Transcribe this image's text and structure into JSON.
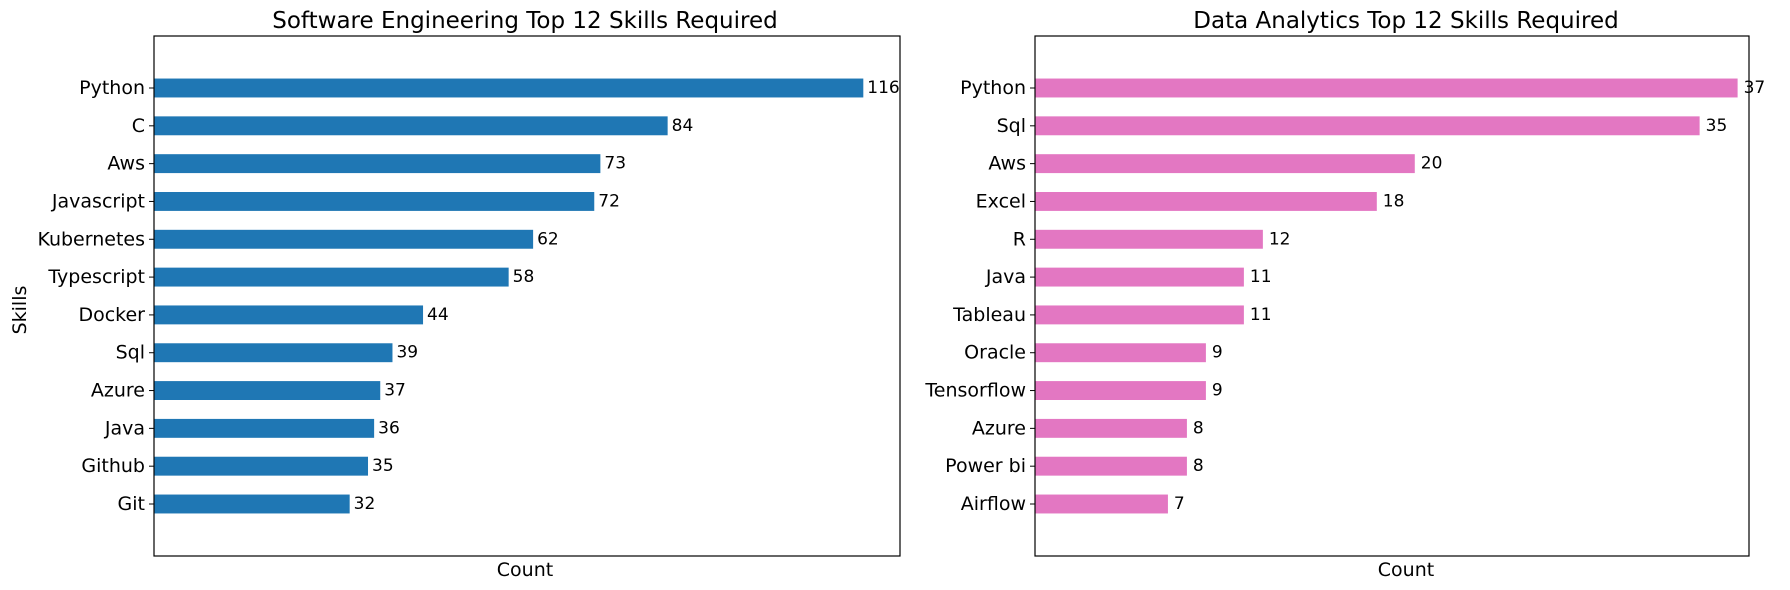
{
  "chart_data": [
    {
      "type": "bar",
      "orientation": "horizontal",
      "title": "Software Engineering Top 12 Skills Required",
      "xlabel": "Count",
      "ylabel": "Skills",
      "xlim": [
        0,
        122
      ],
      "categories": [
        "Python",
        "C",
        "Aws",
        "Javascript",
        "Kubernetes",
        "Typescript",
        "Docker",
        "Sql",
        "Azure",
        "Java",
        "Github",
        "Git"
      ],
      "values": [
        116,
        84,
        73,
        72,
        62,
        58,
        44,
        39,
        37,
        36,
        35,
        32
      ],
      "color": "#1f77b4",
      "grid": false,
      "data_labels": true
    },
    {
      "type": "bar",
      "orientation": "horizontal",
      "title": "Data Analytics Top 12 Skills Required",
      "xlabel": "Count",
      "ylabel": "",
      "xlim": [
        0,
        37.6
      ],
      "categories": [
        "Python",
        "Sql",
        "Aws",
        "Excel",
        "R",
        "Java",
        "Tableau",
        "Oracle",
        "Tensorflow",
        "Azure",
        "Power bi",
        "Airflow"
      ],
      "values": [
        37,
        35,
        20,
        18,
        12,
        11,
        11,
        9,
        9,
        8,
        8,
        7
      ],
      "color": "#e377c2",
      "grid": false,
      "data_labels": true
    }
  ]
}
